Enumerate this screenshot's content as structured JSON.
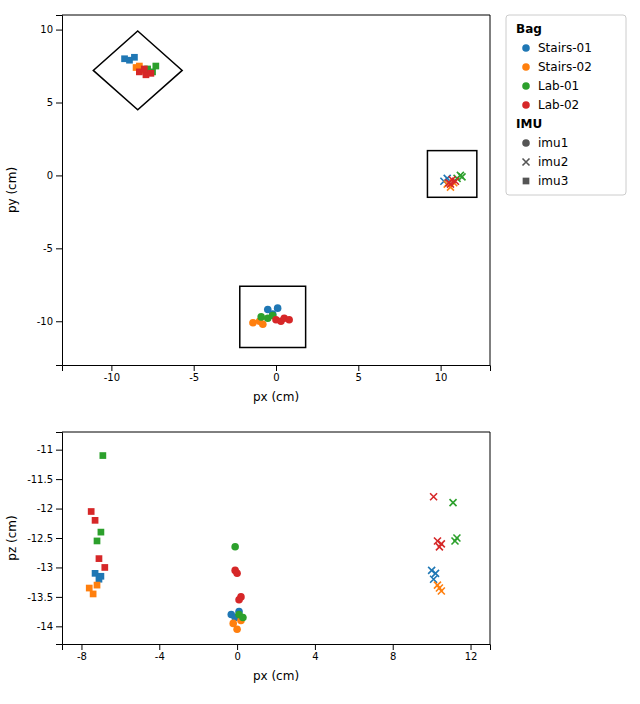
{
  "chart_data": [
    {
      "type": "scatter",
      "xlabel": "px (cm)",
      "ylabel": "py (cm)",
      "xlim": [
        -13,
        13
      ],
      "ylim": [
        -13,
        11
      ],
      "xticks": [
        -10,
        -5,
        0,
        5,
        10
      ],
      "yticks": [
        -10,
        -5,
        0,
        5,
        10
      ],
      "legend": "right",
      "legend_sections": [
        {
          "title": "Bag",
          "entries": [
            {
              "name": "Stairs-01",
              "color": "#1f77b4",
              "marker": "circle"
            },
            {
              "name": "Stairs-02",
              "color": "#ff7f0e",
              "marker": "circle"
            },
            {
              "name": "Lab-01",
              "color": "#2ca02c",
              "marker": "circle"
            },
            {
              "name": "Lab-02",
              "color": "#d62728",
              "marker": "circle"
            }
          ]
        },
        {
          "title": "IMU",
          "entries": [
            {
              "name": "imu1",
              "color": "#555555",
              "marker": "circle"
            },
            {
              "name": "imu2",
              "color": "#555555",
              "marker": "x"
            },
            {
              "name": "imu3",
              "color": "#555555",
              "marker": "square"
            }
          ]
        }
      ],
      "shapes": [
        {
          "type": "diamond",
          "cx": -8.4,
          "cy": 7.2,
          "half": 2.7
        },
        {
          "type": "rect",
          "x0": -2.2,
          "y0": -11.8,
          "width": 4.0,
          "height": 4.2
        },
        {
          "type": "rect",
          "x0": 9.2,
          "y0": -1.5,
          "width": 3.0,
          "height": 3.2
        }
      ],
      "series": [
        {
          "name": "Stairs-01",
          "imu": "imu3",
          "color": "#1f77b4",
          "marker": "square",
          "x": [
            -9.2,
            -8.9,
            -8.6
          ],
          "y": [
            8.0,
            7.9,
            8.1
          ]
        },
        {
          "name": "Stairs-02",
          "imu": "imu3",
          "color": "#ff7f0e",
          "marker": "square",
          "x": [
            -8.5,
            -8.1,
            -8.3
          ],
          "y": [
            7.4,
            7.2,
            7.5
          ]
        },
        {
          "name": "Lab-01",
          "imu": "imu3",
          "color": "#2ca02c",
          "marker": "square",
          "x": [
            -7.8,
            -7.5,
            -7.3
          ],
          "y": [
            7.3,
            7.1,
            7.5
          ]
        },
        {
          "name": "Lab-02",
          "imu": "imu3",
          "color": "#d62728",
          "marker": "square",
          "x": [
            -8.3,
            -7.9,
            -8.0,
            -7.6
          ],
          "y": [
            7.1,
            6.9,
            7.3,
            7.0
          ]
        },
        {
          "name": "Stairs-01",
          "imu": "imu1",
          "color": "#1f77b4",
          "marker": "circle",
          "x": [
            -0.5,
            -0.2,
            0.1
          ],
          "y": [
            -9.2,
            -9.5,
            -9.1
          ]
        },
        {
          "name": "Stairs-02",
          "imu": "imu1",
          "color": "#ff7f0e",
          "marker": "circle",
          "x": [
            -1.4,
            -1.0,
            -0.8
          ],
          "y": [
            -10.1,
            -10.0,
            -10.2
          ]
        },
        {
          "name": "Lab-01",
          "imu": "imu1",
          "color": "#2ca02c",
          "marker": "circle",
          "x": [
            -0.9,
            -0.5,
            -0.2
          ],
          "y": [
            -9.7,
            -9.8,
            -9.6
          ]
        },
        {
          "name": "Lab-02",
          "imu": "imu1",
          "color": "#d62728",
          "marker": "circle",
          "x": [
            0.0,
            0.3,
            0.5,
            0.8
          ],
          "y": [
            -9.9,
            -10.0,
            -9.8,
            -9.9
          ]
        },
        {
          "name": "Stairs-01",
          "imu": "imu2",
          "color": "#1f77b4",
          "marker": "x",
          "x": [
            10.2,
            10.4,
            10.5
          ],
          "y": [
            -0.4,
            -0.2,
            -0.5
          ]
        },
        {
          "name": "Stairs-02",
          "imu": "imu2",
          "color": "#ff7f0e",
          "marker": "x",
          "x": [
            10.4,
            10.6,
            10.8
          ],
          "y": [
            -0.6,
            -0.8,
            -0.5
          ]
        },
        {
          "name": "Lab-01",
          "imu": "imu2",
          "color": "#2ca02c",
          "marker": "x",
          "x": [
            11.0,
            11.2,
            11.3
          ],
          "y": [
            -0.2,
            0.0,
            -0.1
          ]
        },
        {
          "name": "Lab-02",
          "imu": "imu2",
          "color": "#d62728",
          "marker": "x",
          "x": [
            10.5,
            10.7,
            10.9,
            10.6
          ],
          "y": [
            -0.5,
            -0.3,
            -0.4,
            -0.6
          ]
        }
      ]
    },
    {
      "type": "scatter",
      "xlabel": "px (cm)",
      "ylabel": "pz (cm)",
      "xlim": [
        -9,
        13
      ],
      "ylim": [
        -14.3,
        -10.7
      ],
      "xticks": [
        -8,
        -4,
        0,
        4,
        8,
        12
      ],
      "yticks": [
        -14,
        -13.5,
        -13,
        -12.5,
        -12,
        -11.5,
        -11
      ],
      "series": [
        {
          "name": "Stairs-01",
          "imu": "imu3",
          "color": "#1f77b4",
          "marker": "square",
          "x": [
            -7.3,
            -7.1,
            -7.0
          ],
          "y": [
            -13.1,
            -13.2,
            -13.15
          ]
        },
        {
          "name": "Stairs-02",
          "imu": "imu3",
          "color": "#ff7f0e",
          "marker": "square",
          "x": [
            -7.6,
            -7.4,
            -7.2
          ],
          "y": [
            -13.35,
            -13.45,
            -13.3
          ]
        },
        {
          "name": "Lab-01",
          "imu": "imu3",
          "color": "#2ca02c",
          "marker": "square",
          "x": [
            -6.9,
            -7.2,
            -7.0
          ],
          "y": [
            -11.1,
            -12.55,
            -12.4
          ]
        },
        {
          "name": "Lab-02",
          "imu": "imu3",
          "color": "#d62728",
          "marker": "square",
          "x": [
            -7.5,
            -7.3,
            -7.1,
            -6.8
          ],
          "y": [
            -12.05,
            -12.2,
            -12.85,
            -13.0
          ]
        },
        {
          "name": "Stairs-01",
          "imu": "imu1",
          "color": "#1f77b4",
          "marker": "circle",
          "x": [
            -0.3,
            -0.1,
            0.1
          ],
          "y": [
            -13.8,
            -13.85,
            -13.75
          ]
        },
        {
          "name": "Stairs-02",
          "imu": "imu1",
          "color": "#ff7f0e",
          "marker": "circle",
          "x": [
            -0.2,
            0.0,
            0.2
          ],
          "y": [
            -13.95,
            -14.05,
            -13.9
          ]
        },
        {
          "name": "Lab-01",
          "imu": "imu1",
          "color": "#2ca02c",
          "marker": "circle",
          "x": [
            -0.1,
            0.1,
            0.3
          ],
          "y": [
            -12.65,
            -13.8,
            -13.85
          ]
        },
        {
          "name": "Lab-02",
          "imu": "imu1",
          "color": "#d62728",
          "marker": "circle",
          "x": [
            -0.1,
            0.0,
            0.2,
            0.1
          ],
          "y": [
            -13.05,
            -13.1,
            -13.5,
            -13.55
          ]
        },
        {
          "name": "Stairs-01",
          "imu": "imu2",
          "color": "#1f77b4",
          "marker": "x",
          "x": [
            10.0,
            10.2,
            10.1
          ],
          "y": [
            -13.05,
            -13.1,
            -13.2
          ]
        },
        {
          "name": "Stairs-02",
          "imu": "imu2",
          "color": "#ff7f0e",
          "marker": "x",
          "x": [
            10.3,
            10.5,
            10.4
          ],
          "y": [
            -13.3,
            -13.4,
            -13.35
          ]
        },
        {
          "name": "Lab-01",
          "imu": "imu2",
          "color": "#2ca02c",
          "marker": "x",
          "x": [
            11.1,
            11.3,
            11.2
          ],
          "y": [
            -11.9,
            -12.5,
            -12.55
          ]
        },
        {
          "name": "Lab-02",
          "imu": "imu2",
          "color": "#d62728",
          "marker": "x",
          "x": [
            10.1,
            10.3,
            10.5,
            10.4
          ],
          "y": [
            -11.8,
            -12.55,
            -12.6,
            -12.65
          ]
        }
      ]
    }
  ]
}
